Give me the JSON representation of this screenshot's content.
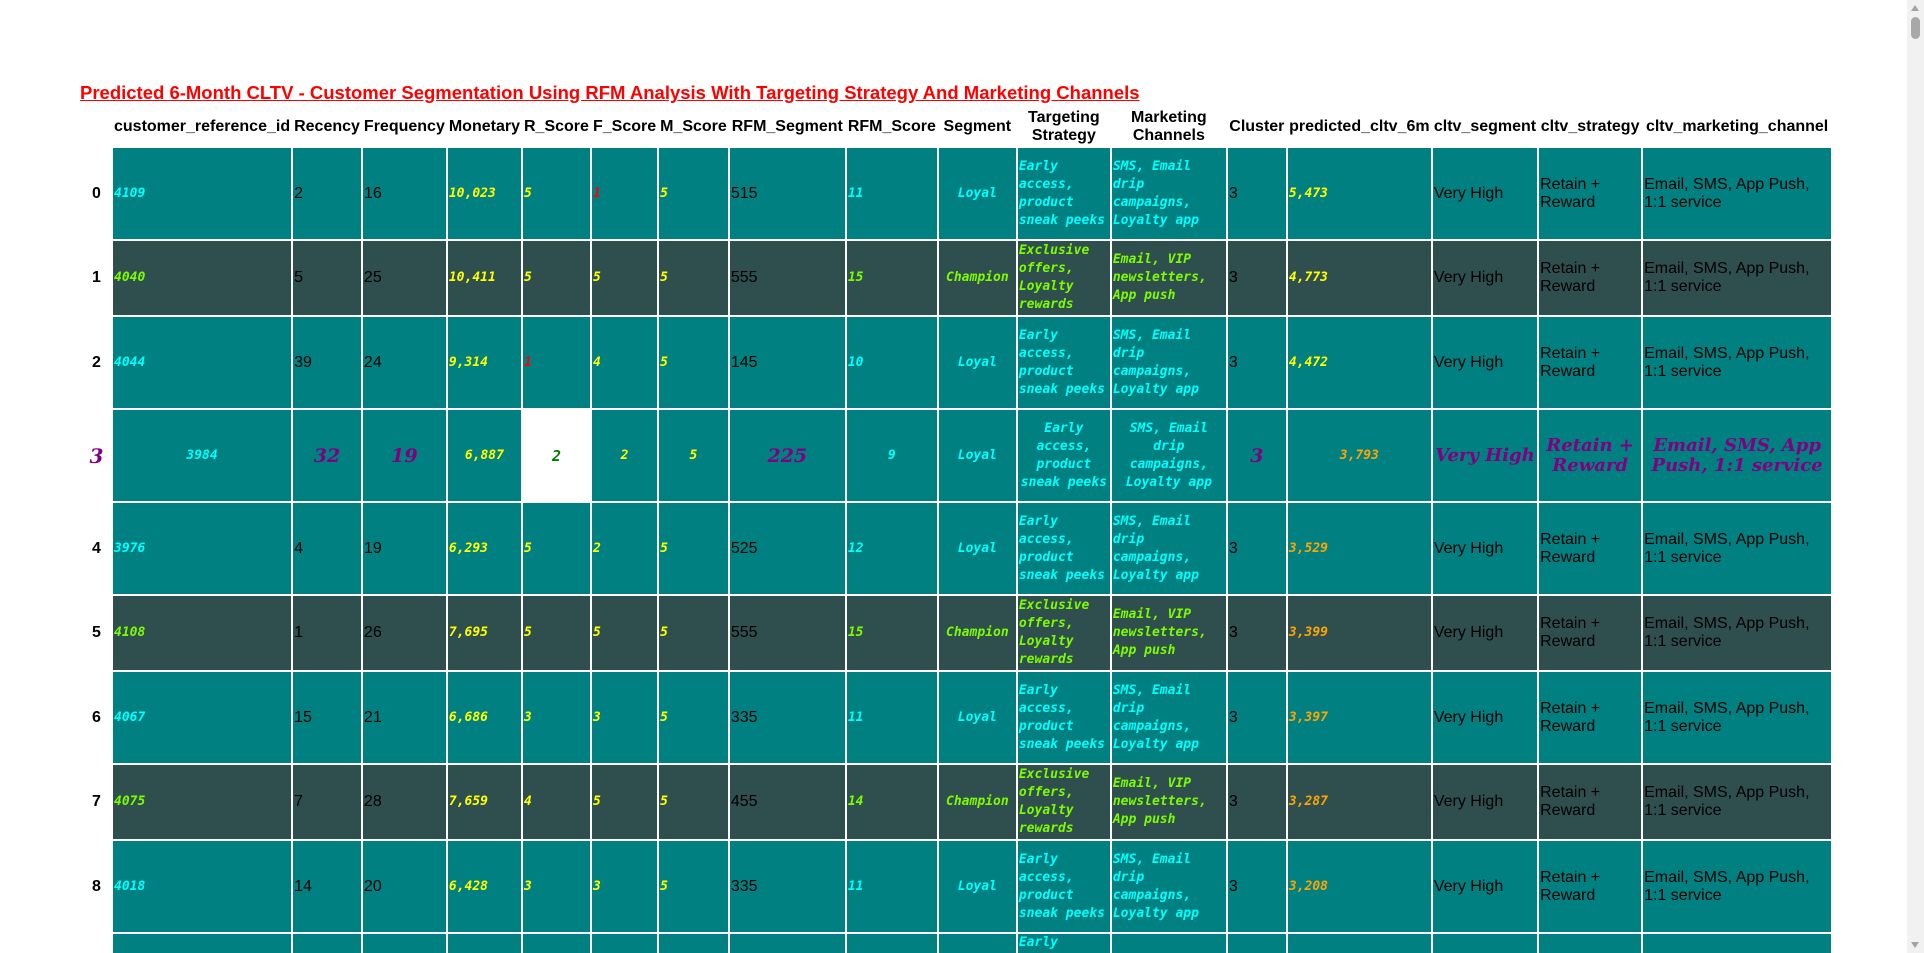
{
  "title": "Predicted 6-Month CLTV - Customer Segmentation Using RFM Analysis With Targeting Strategy And Marketing Channels",
  "columns": [
    "",
    "customer_reference_id",
    "Recency",
    "Frequency",
    "Monetary",
    "R_Score",
    "F_Score",
    "M_Score",
    "RFM_Segment",
    "RFM_Score",
    "Segment",
    "Targeting Strategy",
    "Marketing Channels",
    "Cluster",
    "predicted_cltv_6m",
    "cltv_segment",
    "cltv_strategy",
    "cltv_marketing_channel"
  ],
  "rows": [
    {
      "idx": "0",
      "id": "4109",
      "recency": "2",
      "frequency": "16",
      "monetary": "10,023",
      "r": "5",
      "f": "1",
      "m": "5",
      "rfm_segment": "515",
      "rfm_score": "11",
      "segment": "Loyal",
      "strategy": "Early access, product sneak peeks",
      "channels": "SMS, Email drip campaigns, Loyalty app",
      "cluster": "3",
      "cltv": "5,473",
      "cltv_segment": "Very High",
      "cltv_strategy": "Retain + Reward",
      "cltv_channel": "Email, SMS, App Push, 1:1 service"
    },
    {
      "idx": "1",
      "id": "4040",
      "recency": "5",
      "frequency": "25",
      "monetary": "10,411",
      "r": "5",
      "f": "5",
      "m": "5",
      "rfm_segment": "555",
      "rfm_score": "15",
      "segment": "Champion",
      "strategy": "Exclusive offers, Loyalty rewards",
      "channels": "Email, VIP newsletters, App push",
      "cluster": "3",
      "cltv": "4,773",
      "cltv_segment": "Very High",
      "cltv_strategy": "Retain + Reward",
      "cltv_channel": "Email, SMS, App Push, 1:1 service"
    },
    {
      "idx": "2",
      "id": "4044",
      "recency": "39",
      "frequency": "24",
      "monetary": "9,314",
      "r": "1",
      "f": "4",
      "m": "5",
      "rfm_segment": "145",
      "rfm_score": "10",
      "segment": "Loyal",
      "strategy": "Early access, product sneak peeks",
      "channels": "SMS, Email drip campaigns, Loyalty app",
      "cluster": "3",
      "cltv": "4,472",
      "cltv_segment": "Very High",
      "cltv_strategy": "Retain + Reward",
      "cltv_channel": "Email, SMS, App Push, 1:1 service"
    },
    {
      "idx": "3",
      "id": "3984",
      "recency": "32",
      "frequency": "19",
      "monetary": "6,887",
      "r": "2",
      "f": "2",
      "m": "5",
      "rfm_segment": "225",
      "rfm_score": "9",
      "segment": "Loyal",
      "strategy": "Early access, product sneak peeks",
      "channels": "SMS, Email drip campaigns, Loyalty app",
      "cluster": "3",
      "cltv": "3,793",
      "cltv_segment": "Very High",
      "cltv_strategy": "Retain + Reward",
      "cltv_channel": "Email, SMS, App Push, 1:1 service"
    },
    {
      "idx": "4",
      "id": "3976",
      "recency": "4",
      "frequency": "19",
      "monetary": "6,293",
      "r": "5",
      "f": "2",
      "m": "5",
      "rfm_segment": "525",
      "rfm_score": "12",
      "segment": "Loyal",
      "strategy": "Early access, product sneak peeks",
      "channels": "SMS, Email drip campaigns, Loyalty app",
      "cluster": "3",
      "cltv": "3,529",
      "cltv_segment": "Very High",
      "cltv_strategy": "Retain + Reward",
      "cltv_channel": "Email, SMS, App Push, 1:1 service"
    },
    {
      "idx": "5",
      "id": "4108",
      "recency": "1",
      "frequency": "26",
      "monetary": "7,695",
      "r": "5",
      "f": "5",
      "m": "5",
      "rfm_segment": "555",
      "rfm_score": "15",
      "segment": "Champion",
      "strategy": "Exclusive offers, Loyalty rewards",
      "channels": "Email, VIP newsletters, App push",
      "cluster": "3",
      "cltv": "3,399",
      "cltv_segment": "Very High",
      "cltv_strategy": "Retain + Reward",
      "cltv_channel": "Email, SMS, App Push, 1:1 service"
    },
    {
      "idx": "6",
      "id": "4067",
      "recency": "15",
      "frequency": "21",
      "monetary": "6,686",
      "r": "3",
      "f": "3",
      "m": "5",
      "rfm_segment": "335",
      "rfm_score": "11",
      "segment": "Loyal",
      "strategy": "Early access, product sneak peeks",
      "channels": "SMS, Email drip campaigns, Loyalty app",
      "cluster": "3",
      "cltv": "3,397",
      "cltv_segment": "Very High",
      "cltv_strategy": "Retain + Reward",
      "cltv_channel": "Email, SMS, App Push, 1:1 service"
    },
    {
      "idx": "7",
      "id": "4075",
      "recency": "7",
      "frequency": "28",
      "monetary": "7,659",
      "r": "4",
      "f": "5",
      "m": "5",
      "rfm_segment": "455",
      "rfm_score": "14",
      "segment": "Champion",
      "strategy": "Exclusive offers, Loyalty rewards",
      "channels": "Email, VIP newsletters, App push",
      "cluster": "3",
      "cltv": "3,287",
      "cltv_segment": "Very High",
      "cltv_strategy": "Retain + Reward",
      "cltv_channel": "Email, SMS, App Push, 1:1 service"
    },
    {
      "idx": "8",
      "id": "4018",
      "recency": "14",
      "frequency": "20",
      "monetary": "6,428",
      "r": "3",
      "f": "3",
      "m": "5",
      "rfm_segment": "335",
      "rfm_score": "11",
      "segment": "Loyal",
      "strategy": "Early access, product sneak peeks",
      "channels": "SMS, Email drip campaigns, Loyalty app",
      "cluster": "3",
      "cltv": "3,208",
      "cltv_segment": "Very High",
      "cltv_strategy": "Retain + Reward",
      "cltv_channel": "Email, SMS, App Push, 1:1 service"
    }
  ],
  "partial_row_text": "Early",
  "colors": {
    "teal": "#008080",
    "slate": "#2f4f4f",
    "title": "#ff0000",
    "highlight": "#800080"
  }
}
